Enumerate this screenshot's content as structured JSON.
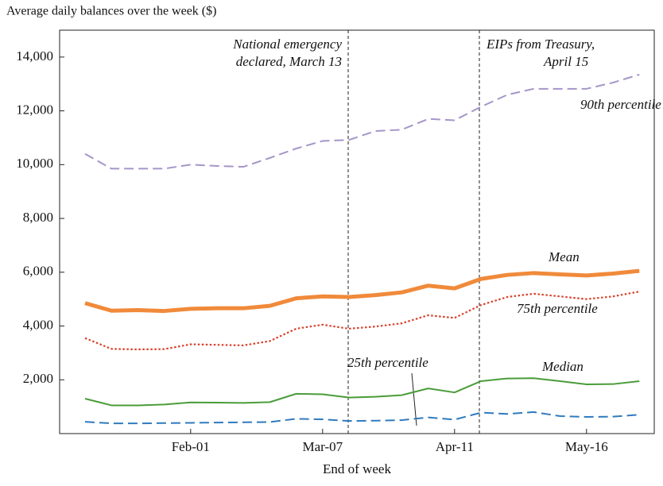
{
  "chart_data": {
    "type": "line",
    "title": "Average daily balances over the week ($)",
    "x_label": "End of week",
    "categories": [
      null,
      null,
      null,
      null,
      "Feb-01",
      null,
      null,
      null,
      null,
      "Mar-07",
      null,
      null,
      null,
      null,
      "Apr-11",
      null,
      null,
      null,
      null,
      "May-16",
      null,
      null
    ],
    "ylim": [
      0,
      15000
    ],
    "yticks": [
      {
        "value": 2000,
        "label": "2,000"
      },
      {
        "value": 4000,
        "label": "4,000"
      },
      {
        "value": 6000,
        "label": "6,000"
      },
      {
        "value": 8000,
        "label": "8,000"
      },
      {
        "value": 10000,
        "label": "10,000"
      },
      {
        "value": 12000,
        "label": "12,000"
      },
      {
        "value": 14000,
        "label": "14,000"
      }
    ],
    "annotations": [
      [
        "National emergency",
        "declared, March 13"
      ],
      [
        "EIPs from Treasury,",
        "April 15"
      ]
    ],
    "series": [
      {
        "name": "90th percentile",
        "color": "#a596c9",
        "style": "dashed",
        "values": [
          10400,
          9850,
          9850,
          9850,
          10000,
          9950,
          9920,
          10250,
          10600,
          10880,
          10920,
          11250,
          11300,
          11700,
          11650,
          12150,
          12600,
          12820,
          12820,
          12820,
          13050,
          13350
        ]
      },
      {
        "name": "Mean",
        "color": "#f08a3a",
        "style": "thick",
        "values": [
          4850,
          4570,
          4590,
          4560,
          4640,
          4660,
          4660,
          4750,
          5030,
          5100,
          5080,
          5150,
          5250,
          5500,
          5400,
          5750,
          5900,
          5970,
          5920,
          5880,
          5950,
          6050
        ]
      },
      {
        "name": "75th percentile",
        "color": "#d9412b",
        "style": "dotted",
        "values": [
          3550,
          3150,
          3130,
          3140,
          3320,
          3300,
          3280,
          3440,
          3900,
          4050,
          3900,
          3980,
          4100,
          4400,
          4300,
          4780,
          5080,
          5200,
          5100,
          5000,
          5100,
          5280
        ]
      },
      {
        "name": "Median",
        "color": "#4a9c3a",
        "style": "solid",
        "values": [
          1300,
          1050,
          1050,
          1080,
          1160,
          1150,
          1140,
          1170,
          1480,
          1460,
          1340,
          1370,
          1430,
          1680,
          1530,
          1950,
          2050,
          2060,
          1950,
          1830,
          1840,
          1950
        ]
      },
      {
        "name": "25th percentile",
        "color": "#2f7bbf",
        "style": "dashed",
        "values": [
          440,
          380,
          380,
          390,
          400,
          410,
          420,
          430,
          550,
          530,
          470,
          480,
          500,
          600,
          520,
          780,
          730,
          800,
          650,
          620,
          630,
          700
        ]
      }
    ]
  }
}
